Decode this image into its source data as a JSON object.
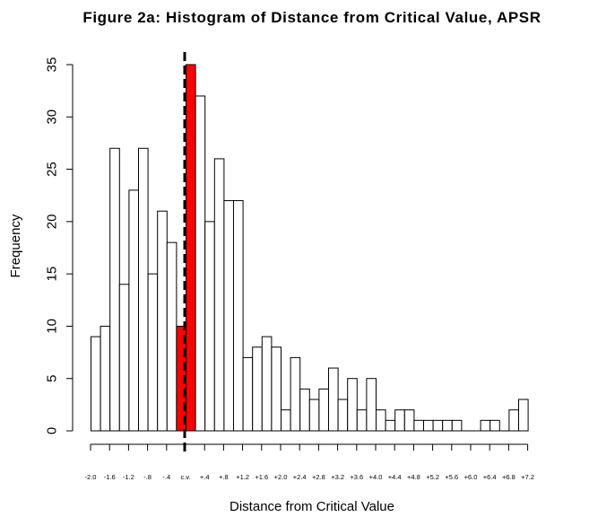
{
  "chart_data": {
    "type": "bar",
    "title": "Figure 2a: Histogram of Distance from Critical Value, APSR",
    "xlabel": "Distance from Critical Value",
    "ylabel": "Frequency",
    "ylim": [
      0,
      35
    ],
    "yticks": [
      0,
      5,
      10,
      15,
      20,
      25,
      30,
      35
    ],
    "x_tick_labels": [
      "-2.0",
      "-1.6",
      "-1.2",
      "-.8",
      "-.4",
      "c.v.",
      "+.4",
      "+.8",
      "+1.2",
      "+1.6",
      "+2.0",
      "+2.4",
      "+2.8",
      "+3.2",
      "+3.6",
      "+4.0",
      "+4.4",
      "+4.8",
      "+5.2",
      "+5.6",
      "+6.0",
      "+6.4",
      "+6.8",
      "+7.2"
    ],
    "bin_width": 0.2,
    "bin_start": -2.0,
    "critical_value_line": "c.v.",
    "highlight_color": "#ff0000",
    "bar_color": "#ffffff",
    "values": [
      9,
      10,
      27,
      14,
      23,
      27,
      15,
      21,
      18,
      10,
      35,
      32,
      20,
      26,
      22,
      22,
      7,
      8,
      9,
      8,
      2,
      7,
      4,
      3,
      4,
      6,
      3,
      5,
      2,
      5,
      2,
      1,
      2,
      2,
      1,
      1,
      1,
      1,
      1,
      0,
      0,
      1,
      1,
      0,
      2,
      3
    ],
    "highlighted_bins": [
      9,
      10
    ]
  }
}
